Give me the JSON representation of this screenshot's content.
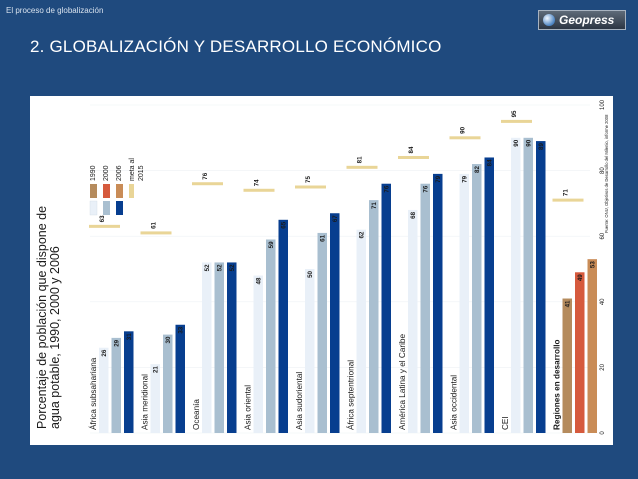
{
  "header": {
    "caption": "El proceso de globalización",
    "logo_text": "Geopress"
  },
  "slide": {
    "title": "2. GLOBALIZACIÓN Y DESARROLLO ECONÓMICO"
  },
  "colors": {
    "background": "#1f4a7e",
    "y1990": "#e9f0f8",
    "y2000": "#a9bfd0",
    "y2006": "#073e8f",
    "y1990_dev": "#b58b5d",
    "y2000_dev": "#d65a3d",
    "y2006_dev": "#c98c57",
    "target": "#e9d597"
  },
  "chart_data": {
    "type": "bar",
    "orientation": "horizontal",
    "title": "Porcentaje de población que dispone de agua potable, 1990, 2000 y 2006",
    "source": "Fuente: ONU, Objetivos de Desarrollo del Milenio, informe 2008",
    "xlim": [
      0,
      100
    ],
    "ticks": [
      0,
      20,
      40,
      60,
      80,
      100
    ],
    "categories": [
      "África subsahariana",
      "Asia meridional",
      "Oceanía",
      "Asia oriental",
      "Asia sudoriental",
      "África septentrional",
      "América Latina y el Caribe",
      "Asia occidental",
      "CEI",
      "Regiones en desarrollo"
    ],
    "series": [
      {
        "name": "1990",
        "values": [
          26,
          21,
          52,
          48,
          50,
          62,
          68,
          79,
          90,
          41
        ]
      },
      {
        "name": "2000",
        "values": [
          29,
          30,
          52,
          59,
          61,
          71,
          76,
          82,
          90,
          49
        ]
      },
      {
        "name": "2006",
        "values": [
          31,
          33,
          52,
          65,
          67,
          76,
          79,
          84,
          89,
          53
        ]
      }
    ],
    "target": {
      "name": "meta al 2015",
      "values": [
        63,
        61,
        76,
        74,
        75,
        81,
        84,
        90,
        95,
        71
      ]
    }
  }
}
